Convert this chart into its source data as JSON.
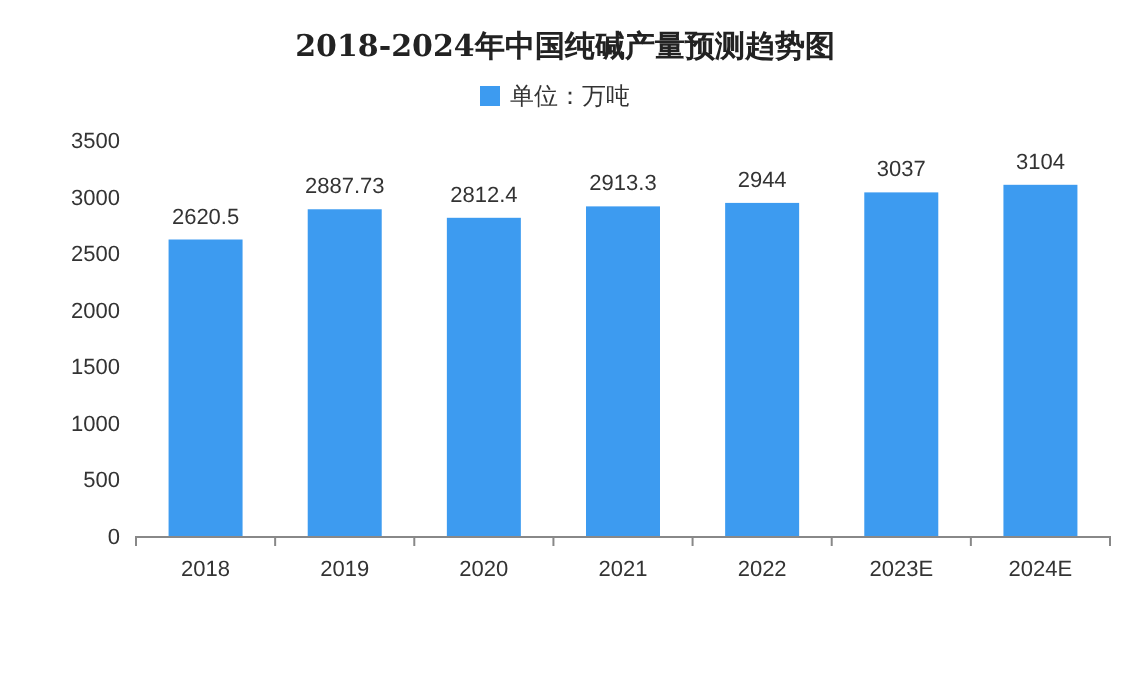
{
  "chart_data": {
    "type": "bar",
    "title": "2018-2024年中国纯碱产量预测趋势图",
    "categories": [
      "2018",
      "2019",
      "2020",
      "2021",
      "2022",
      "2023E",
      "2024E"
    ],
    "series": [
      {
        "name": "单位：万吨",
        "color": "#3d9bf0",
        "values": [
          2620.5,
          2887.73,
          2812.4,
          2913.3,
          2944,
          3037,
          3104
        ]
      }
    ],
    "ylim": [
      0,
      3500
    ],
    "yticks": [
      0,
      500,
      1000,
      1500,
      2000,
      2500,
      3000,
      3500
    ],
    "data_labels": true,
    "legend": "top",
    "grid": false
  }
}
